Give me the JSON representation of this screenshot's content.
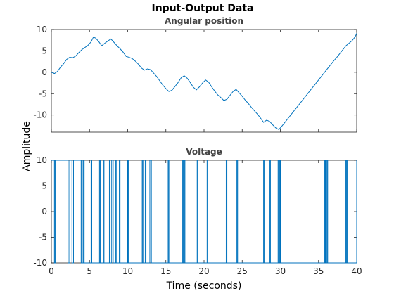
{
  "figure": {
    "title": "Input-Output Data",
    "ylabel": "Amplitude",
    "xlabel": "Time (seconds)"
  },
  "chart_data": [
    {
      "type": "line",
      "title": "Angular position",
      "xlabel": "Time (seconds)",
      "ylabel": "Amplitude",
      "xlim": [
        0,
        40
      ],
      "ylim": [
        -14,
        10
      ],
      "xticks": [
        0,
        5,
        10,
        15,
        20,
        25,
        30,
        35,
        40
      ],
      "xticklabels_visible": false,
      "yticks": [
        -10,
        -5,
        0,
        5,
        10
      ],
      "grid": false,
      "color": "#0072BD",
      "series": [
        {
          "x": [
            0,
            0.4,
            0.8,
            1.2,
            1.6,
            2.0,
            2.4,
            2.8,
            3.2,
            3.6,
            4.0,
            4.4,
            4.8,
            5.2,
            5.5,
            5.8,
            6.2,
            6.6,
            7.0,
            7.4,
            7.8,
            8.2,
            8.6,
            9.0,
            9.4,
            9.8,
            10.2,
            10.6,
            11.0,
            11.4,
            11.8,
            12.2,
            12.6,
            13.0,
            13.4,
            13.8,
            14.2,
            14.6,
            15.0,
            15.4,
            15.8,
            16.2,
            16.6,
            17.0,
            17.4,
            17.8,
            18.2,
            18.6,
            19.0,
            19.4,
            19.8,
            20.2,
            20.6,
            21.0,
            21.4,
            21.8,
            22.2,
            22.6,
            23.0,
            23.4,
            23.8,
            24.2,
            24.6,
            25.0,
            25.4,
            25.8,
            26.2,
            26.6,
            27.0,
            27.4,
            27.8,
            28.2,
            28.6,
            29.0,
            29.4,
            29.8,
            30.2,
            30.6,
            31.0,
            31.4,
            31.8,
            32.2,
            32.6,
            33.0,
            33.4,
            33.8,
            34.2,
            34.6,
            35.0,
            35.4,
            35.8,
            36.2,
            36.6,
            37.0,
            37.4,
            37.8,
            38.2,
            38.6,
            39.0,
            39.4,
            39.8,
            40.0
          ],
          "y": [
            0,
            -0.3,
            0.2,
            1.2,
            2.0,
            3.0,
            3.5,
            3.4,
            3.8,
            4.6,
            5.3,
            5.8,
            6.3,
            7.1,
            8.2,
            8.0,
            7.2,
            6.2,
            6.8,
            7.3,
            7.8,
            7.0,
            6.2,
            5.5,
            4.7,
            3.7,
            3.5,
            3.2,
            2.6,
            1.9,
            1.0,
            0.5,
            0.8,
            0.6,
            -0.2,
            -1.0,
            -2.0,
            -3.0,
            -3.8,
            -4.5,
            -4.2,
            -3.3,
            -2.4,
            -1.3,
            -0.8,
            -1.4,
            -2.4,
            -3.5,
            -4.1,
            -3.4,
            -2.5,
            -1.8,
            -2.3,
            -3.4,
            -4.4,
            -5.3,
            -5.9,
            -6.6,
            -6.3,
            -5.4,
            -4.5,
            -4.0,
            -4.8,
            -5.6,
            -6.5,
            -7.3,
            -8.2,
            -9.0,
            -9.8,
            -10.7,
            -11.7,
            -11.2,
            -11.5,
            -12.3,
            -13.0,
            -13.4,
            -12.6,
            -11.7,
            -10.8,
            -9.9,
            -9.0,
            -8.1,
            -7.2,
            -6.3,
            -5.4,
            -4.5,
            -3.6,
            -2.7,
            -1.8,
            -0.9,
            0.0,
            0.9,
            1.8,
            2.7,
            3.5,
            4.4,
            5.3,
            6.2,
            6.8,
            7.4,
            8.3,
            9.1
          ]
        }
      ]
    },
    {
      "type": "line",
      "title": "Voltage",
      "xlabel": "Time (seconds)",
      "ylabel": "Amplitude",
      "xlim": [
        0,
        40
      ],
      "ylim": [
        -10,
        10
      ],
      "xticks": [
        0,
        5,
        10,
        15,
        20,
        25,
        30,
        35,
        40
      ],
      "yticks": [
        -10,
        -5,
        0,
        5,
        10
      ],
      "grid": false,
      "color": "#0072BD",
      "series": [
        {
          "step": true,
          "x": [
            0,
            0.4,
            0.5,
            2.2,
            2.4,
            2.7,
            2.9,
            3.9,
            4.0,
            4.05,
            4.2,
            4.3,
            5.2,
            5.3,
            6.3,
            6.4,
            6.8,
            6.9,
            7.6,
            7.7,
            7.9,
            8.1,
            8.4,
            8.5,
            8.9,
            9.0,
            10.0,
            10.1,
            11.9,
            12.0,
            12.3,
            12.4,
            12.9,
            13.1,
            15.3,
            15.4,
            17.2,
            17.3,
            17.4,
            17.5,
            19.1,
            19.2,
            20.4,
            20.5,
            22.9,
            23.0,
            24.3,
            24.4,
            27.8,
            27.9,
            28.6,
            28.7,
            29.7,
            29.8,
            29.9,
            30.0,
            35.8,
            35.9,
            36.1,
            36.2,
            38.5,
            38.6,
            38.7,
            38.8,
            40.0
          ],
          "y": [
            10,
            -10,
            10,
            -10,
            10,
            -10,
            10,
            -10,
            10,
            -10,
            10,
            -10,
            10,
            -10,
            10,
            -10,
            10,
            -10,
            10,
            -10,
            10,
            -10,
            10,
            -10,
            10,
            -10,
            10,
            -10,
            10,
            -10,
            10,
            -10,
            10,
            -10,
            10,
            -10,
            10,
            -10,
            10,
            -10,
            10,
            -10,
            10,
            -10,
            10,
            -10,
            10,
            -10,
            10,
            -10,
            10,
            -10,
            10,
            -10,
            10,
            -10,
            10,
            -10,
            10,
            -10,
            10,
            -10,
            10,
            -10,
            10
          ]
        }
      ]
    }
  ]
}
